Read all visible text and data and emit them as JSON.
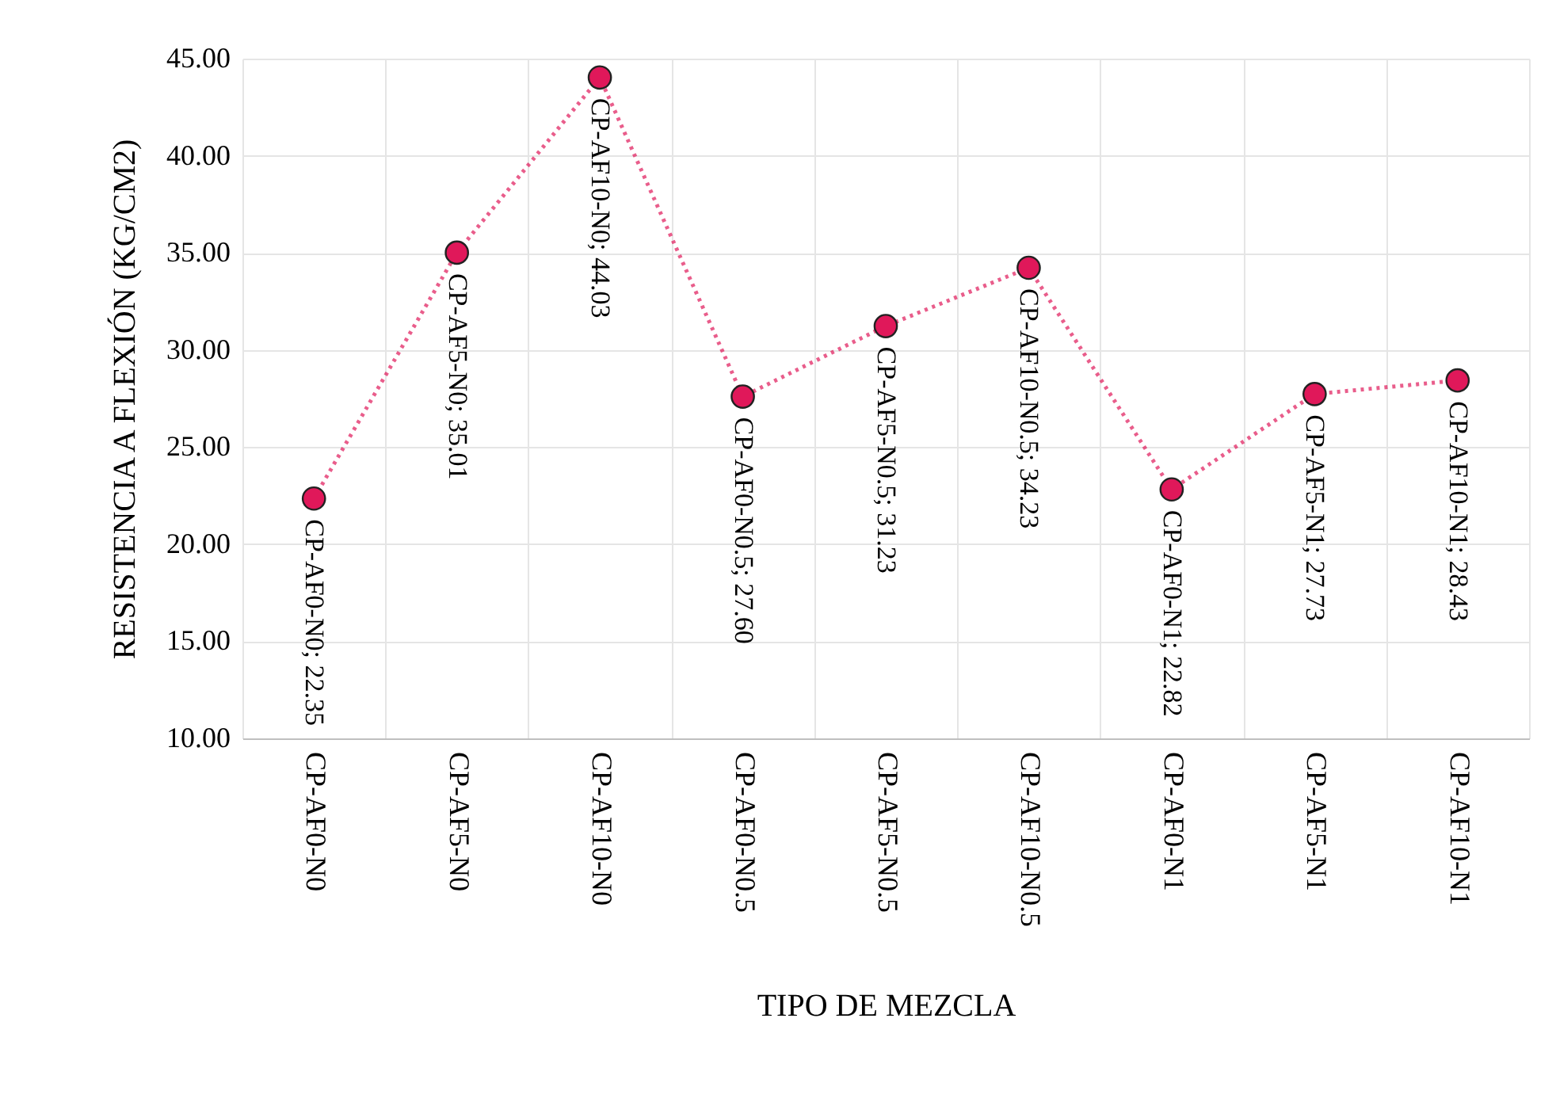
{
  "chart_data": {
    "type": "line",
    "xlabel": "TIPO DE MEZCLA",
    "ylabel": "RESISTENCIA A FLEXIÓN (KG/CM2)",
    "categories": [
      "CP-AF0-N0",
      "CP-AF5-N0",
      "CP-AF10-N0",
      "CP-AF0-N0.5",
      "CP-AF5-N0.5",
      "CP-AF10-N0.5",
      "CP-AF0-N1",
      "CP-AF5-N1",
      "CP-AF10-N1"
    ],
    "series": [
      {
        "color": "#e0185a",
        "values": [
          22.35,
          35.01,
          44.03,
          27.6,
          31.23,
          34.23,
          22.82,
          27.73,
          28.43
        ],
        "value_labels": [
          "CP-AF0-N0; 22.35",
          "CP-AF5-N0; 35.01",
          "CP-AF10-N0; 44.03",
          "CP-AF0-N0.5; 27.60",
          "CP-AF5-N0.5; 31.23",
          "CP-AF10-N0.5; 34.23",
          "CP-AF0-N1; 22.82",
          "CP-AF5-N1; 27.73",
          "CP-AF10-N1; 28.43"
        ]
      }
    ],
    "ylim": [
      10,
      45
    ],
    "yticks": [
      {
        "value": 10,
        "label": "10.00"
      },
      {
        "value": 15,
        "label": "15.00"
      },
      {
        "value": 20,
        "label": "20.00"
      },
      {
        "value": 25,
        "label": "25.00"
      },
      {
        "value": 30,
        "label": "30.00"
      },
      {
        "value": 35,
        "label": "35.00"
      },
      {
        "value": 40,
        "label": "40.00"
      },
      {
        "value": 45,
        "label": "45.00"
      }
    ],
    "grid": true,
    "marker": "circle",
    "line_style": "dotted"
  }
}
